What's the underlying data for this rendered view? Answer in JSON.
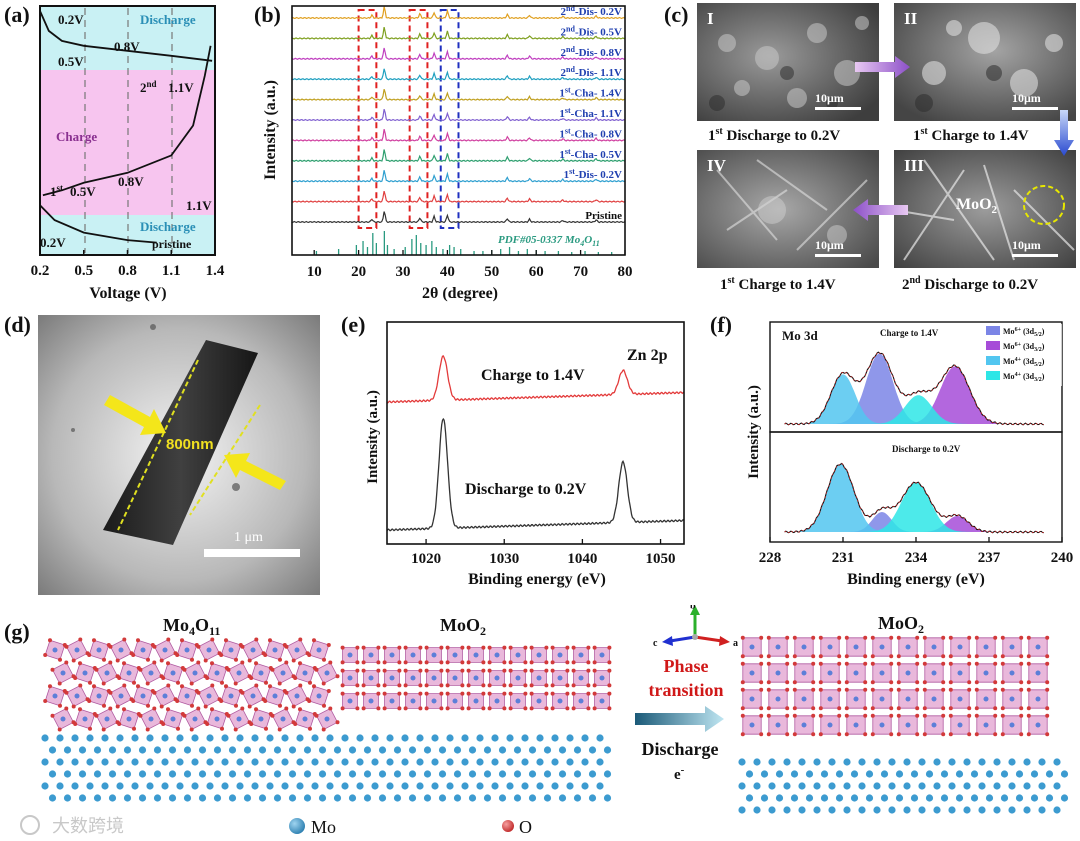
{
  "colors": {
    "discharge_bg": "#c9f1f4",
    "charge_bg": "#f7c5ef",
    "xrd_red_box": "#e02020",
    "xrd_blue_box": "#2030c0",
    "zn_red": "#e33b3b",
    "zn_black": "#333333",
    "mo6_32": "#7b85e6",
    "mo6_52": "#a64cd8",
    "mo4_32": "#52c6f0",
    "mo4_52": "#2ee6e6",
    "mo_atom": "#3c9bd0",
    "o_atom": "#d84040",
    "poly_pink": "#d77dbd",
    "poly_blue": "#5c7fd8"
  },
  "panel_a": {
    "label": "(a)",
    "chart_data": {
      "type": "line",
      "title": "",
      "xlabel": "Voltage (V)",
      "ylabel": "",
      "xlim": [
        0.2,
        1.4
      ],
      "ylim": [
        0,
        1
      ],
      "x_ticks": [
        "0.2",
        "0.5",
        "0.8",
        "1.1",
        "1.4"
      ],
      "vlines": [
        0.5,
        0.8,
        1.1
      ],
      "regions": [
        {
          "name": "Discharge",
          "ymin": 0.8,
          "ymax": 1.0
        },
        {
          "name": "Charge",
          "ymin": 0.2,
          "ymax": 0.8
        },
        {
          "name": "Discharge",
          "ymin": 0.0,
          "ymax": 0.2
        }
      ],
      "series": [
        {
          "name": "2nd discharge",
          "x": [
            0.2,
            0.26,
            0.35,
            0.5,
            0.8,
            1.1,
            1.38
          ],
          "y": [
            0.98,
            0.9,
            0.86,
            0.84,
            0.82,
            0.8,
            0.78
          ]
        },
        {
          "name": "1st charge",
          "x": [
            0.22,
            0.35,
            0.5,
            0.8,
            1.1,
            1.25,
            1.33,
            1.37
          ],
          "y": [
            0.24,
            0.26,
            0.29,
            0.33,
            0.4,
            0.52,
            0.72,
            0.84
          ]
        },
        {
          "name": "1st discharge",
          "x": [
            0.2,
            0.3,
            0.5,
            0.8,
            1.0
          ],
          "y": [
            0.2,
            0.14,
            0.09,
            0.06,
            0.05
          ]
        }
      ]
    },
    "annotations": {
      "v02_top": "0.2V",
      "v05_top": "0.5V",
      "v08_top": "0.8V",
      "second_a": "2",
      "second_b": "nd",
      "v11_top": "1.1V",
      "discharge_top": "Discharge",
      "charge": "Charge",
      "first_a": "1",
      "first_b": "st",
      "v05_mid": "0.5V",
      "v08_mid": "0.8V",
      "v11_mid": "1.1V",
      "discharge_bottom": "Discharge",
      "v02_bottom": "0.2V",
      "pristine": "pristine"
    }
  },
  "panel_b": {
    "label": "(b)",
    "chart_data": {
      "type": "line",
      "title": "",
      "xlabel": "2θ (degree)",
      "ylabel": "Intensity (a.u.)",
      "xlim": [
        5,
        80
      ],
      "x_ticks": [
        10,
        20,
        30,
        40,
        50,
        60,
        70,
        80
      ],
      "boxes": [
        {
          "x": [
            20,
            24
          ],
          "color": "red"
        },
        {
          "x": [
            31.5,
            35.5
          ],
          "color": "red"
        },
        {
          "x": [
            38.5,
            42.5
          ],
          "color": "blue"
        }
      ],
      "series": [
        {
          "name_sup": "nd",
          "name_pre": "2",
          "name_post": "-Dis- 0.2V",
          "color": "#e0a020"
        },
        {
          "name_sup": "nd",
          "name_pre": "2",
          "name_post": "-Dis- 0.5V",
          "color": "#7fa020"
        },
        {
          "name_sup": "nd",
          "name_pre": "2",
          "name_post": "-Dis- 0.8V",
          "color": "#c040c0"
        },
        {
          "name_sup": "nd",
          "name_pre": "2",
          "name_post": "-Dis- 1.1V",
          "color": "#20a0c0"
        },
        {
          "name_sup": "st",
          "name_pre": "1",
          "name_post": "-Cha- 1.4V",
          "color": "#c0a020"
        },
        {
          "name_sup": "st",
          "name_pre": "1",
          "name_post": "-Cha- 1.1V",
          "color": "#8060d0"
        },
        {
          "name_sup": "st",
          "name_pre": "1",
          "name_post": "-Cha- 0.8V",
          "color": "#d040a0"
        },
        {
          "name_sup": "st",
          "name_pre": "1",
          "name_post": "-Cha- 0.5V",
          "color": "#30a070"
        },
        {
          "name_sup": "st",
          "name_pre": "1",
          "name_post": "-Dis- 0.2V",
          "color": "#30a0d0"
        },
        {
          "name_sup": "",
          "name_pre": "",
          "name_post": "",
          "color": "#e04040"
        },
        {
          "name_sup": "",
          "name_pre": "Pristine",
          "name_post": "",
          "color": "#333333"
        }
      ],
      "main_peaks": [
        23,
        25.8,
        33.8,
        37,
        40,
        53.5,
        58.5,
        66,
        73.5
      ],
      "reference": {
        "label": "PDF#05-0337 Mo",
        "label_sub1": "4",
        "label_mid": "O",
        "label_sub2": "11",
        "sticks": [
          10.5,
          15.5,
          19.5,
          21,
          22,
          23.2,
          24,
          25.8,
          26.5,
          28,
          30.5,
          32,
          33,
          34,
          35.2,
          36.5,
          37.5,
          39,
          40.5,
          41.5,
          43,
          46,
          48,
          50,
          52,
          54,
          56,
          58,
          60,
          62,
          65,
          68,
          71,
          74,
          77
        ]
      }
    }
  },
  "panel_c": {
    "label": "(c)",
    "images": [
      {
        "numeral": "I",
        "scale": "10μm",
        "cap_a": "1",
        "cap_b": "st",
        "cap_c": " Discharge to 0.2V"
      },
      {
        "numeral": "II",
        "scale": "10μm",
        "cap_a": "1",
        "cap_b": "st",
        "cap_c": " Charge to 1.4V"
      },
      {
        "numeral": "IV",
        "scale": "10μm",
        "cap_a": "1",
        "cap_b": "st",
        "cap_c": " Charge to 1.4V"
      },
      {
        "numeral": "III",
        "scale": "10μm",
        "cap_a": "2",
        "cap_b": "nd",
        "cap_c": " Discharge to 0.2V",
        "annotation_a": "MoO",
        "annotation_b": "2"
      }
    ]
  },
  "panel_d": {
    "label": "(d)",
    "length_label": "800nm",
    "scale": "1 μm"
  },
  "panel_e": {
    "label": "(e)",
    "chart_data": {
      "type": "line",
      "title": "Zn 2p",
      "xlabel": "Binding energy (eV)",
      "ylabel": "Intensity (a.u.)",
      "xlim": [
        1015,
        1053
      ],
      "x_ticks": [
        1020,
        1030,
        1040,
        1050
      ],
      "series": [
        {
          "name": "Charge to 1.4V",
          "peaks": [
            {
              "x": 1022.2,
              "h": 0.55
            },
            {
              "x": 1045.2,
              "h": 0.3
            }
          ]
        },
        {
          "name": "Discharge to 0.2V",
          "peaks": [
            {
              "x": 1022.2,
              "h": 1.0
            },
            {
              "x": 1045.2,
              "h": 0.55
            }
          ]
        }
      ]
    }
  },
  "panel_f": {
    "label": "(f)",
    "chart_data": {
      "type": "area",
      "title": "Mo 3d",
      "xlabel": "Binding energy (eV)",
      "ylabel": "Intensity (a.u.)",
      "xlim": [
        228,
        240
      ],
      "x_ticks": [
        228,
        231,
        234,
        237,
        240
      ],
      "legend": [
        {
          "pre": "Mo",
          "sup": "6+",
          "mid": " (3d",
          "sub": "5/2",
          "post": ")"
        },
        {
          "pre": "Mo",
          "sup": "6+",
          "mid": " (3d",
          "sub": "3/2",
          "post": ")"
        },
        {
          "pre": "Mo",
          "sup": "4+",
          "mid": " (3d",
          "sub": "5/2",
          "post": ")"
        },
        {
          "pre": "Mo",
          "sup": "4+",
          "mid": " (3d",
          "sub": "3/2",
          "post": ")"
        }
      ],
      "top": {
        "name": "Charge to 1.4V",
        "components": [
          {
            "component": "Mo6+ 3d5/2",
            "center": 232.5,
            "height": 0.88,
            "width": 0.55
          },
          {
            "component": "Mo6+ 3d3/2",
            "center": 235.6,
            "height": 0.72,
            "width": 0.6
          },
          {
            "component": "Mo4+ 3d5/2",
            "center": 231.0,
            "height": 0.62,
            "width": 0.5
          },
          {
            "component": "Mo4+ 3d3/2",
            "center": 234.1,
            "height": 0.36,
            "width": 0.55
          }
        ]
      },
      "bottom": {
        "name": "Discharge to 0.2V",
        "components": [
          {
            "component": "Mo6+ 3d5/2",
            "center": 232.6,
            "height": 0.25,
            "width": 0.4
          },
          {
            "component": "Mo6+ 3d3/2",
            "center": 235.7,
            "height": 0.2,
            "width": 0.45
          },
          {
            "component": "Mo4+ 3d5/2",
            "center": 230.9,
            "height": 0.85,
            "width": 0.55
          },
          {
            "component": "Mo4+ 3d3/2",
            "center": 234.0,
            "height": 0.62,
            "width": 0.6
          }
        ]
      }
    }
  },
  "panel_g": {
    "label": "(g)",
    "title_left_a": "Mo",
    "title_left_b": "4",
    "title_left_c": "O",
    "title_left_d": "11",
    "title_mid_a": "MoO",
    "title_mid_b": "2",
    "title_right_a": "MoO",
    "title_right_b": "2",
    "axis_b": "b",
    "axis_c": "c",
    "axis_a": "a",
    "phase_1": "Phase",
    "phase_2": "transition",
    "discharge": "Discharge",
    "electron_a": "e",
    "electron_b": "-",
    "legend_mo": "Mo",
    "legend_o": "O",
    "watermark": "大数跨境"
  }
}
